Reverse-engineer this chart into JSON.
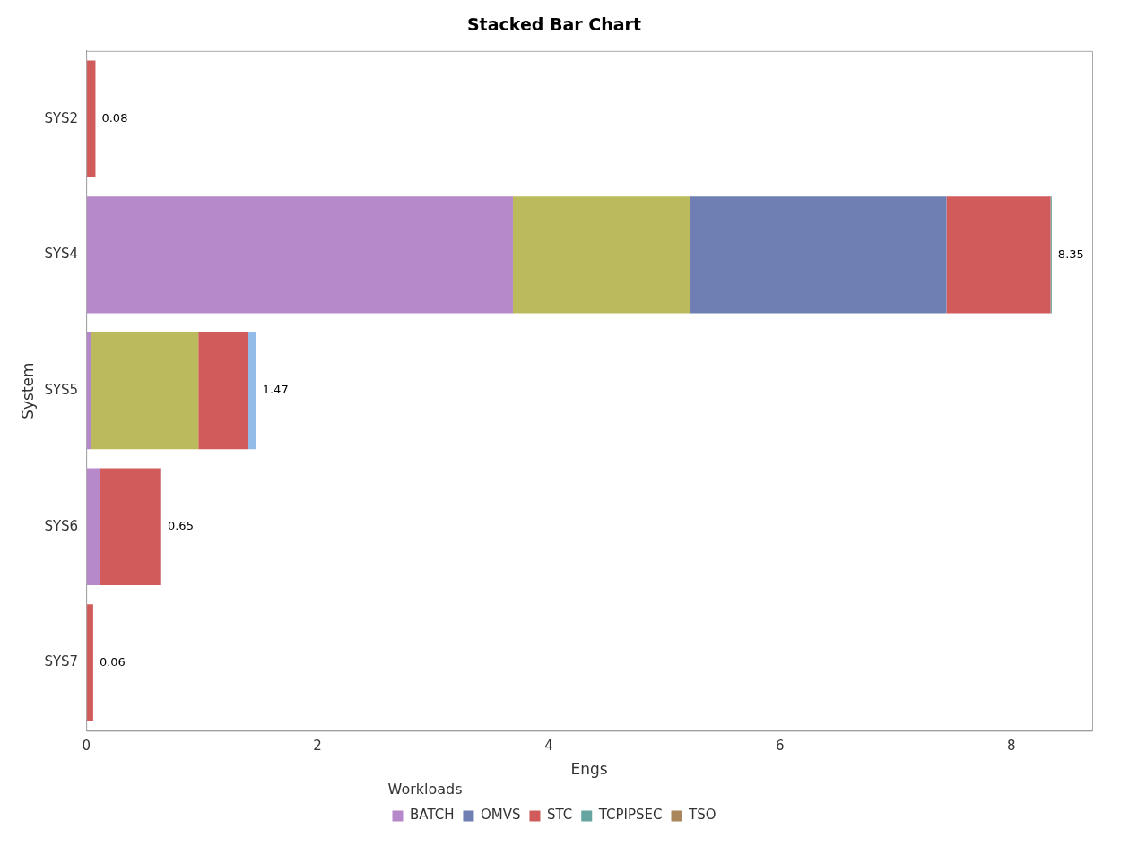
{
  "chart_data": {
    "type": "bar",
    "title": "Stacked Bar Chart",
    "orientation": "horizontal",
    "stacked": true,
    "categories": [
      "SYS2",
      "SYS4",
      "SYS5",
      "SYS6",
      "SYS7"
    ],
    "series": [
      {
        "name": "BATCH",
        "color": "#b689cb",
        "values": [
          0,
          3.69,
          0.04,
          0.12,
          0
        ]
      },
      {
        "color": "#bbbb5d",
        "values": [
          0,
          1.53,
          0.93,
          0,
          0
        ]
      },
      {
        "name": "OMVS",
        "color": "#6f7fb3",
        "values": [
          0,
          2.22,
          0,
          0,
          0
        ]
      },
      {
        "name": "STC",
        "color": "#d15b5b",
        "values": [
          0.08,
          0.9,
          0.43,
          0.52,
          0.06
        ]
      },
      {
        "name": "TCPIPSEC",
        "color": "#66a5a0",
        "values": [
          0,
          0.01,
          0,
          0,
          0
        ]
      },
      {
        "name": "TSO",
        "color": "#a9865b",
        "values": [
          0,
          0,
          0,
          0,
          0
        ]
      },
      {
        "color": "#94bce8",
        "values": [
          0,
          0,
          0.07,
          0.01,
          0
        ]
      }
    ],
    "totals": [
      "0.08",
      "8.35",
      "1.47",
      "0.65",
      "0.06"
    ],
    "xlim": [
      0,
      8.7
    ],
    "xticks": [
      0,
      2,
      4,
      6,
      8
    ],
    "xlabel": "Engs",
    "ylabel": "System",
    "legend_title": "Workloads",
    "legend": "bottom",
    "grid": false
  }
}
